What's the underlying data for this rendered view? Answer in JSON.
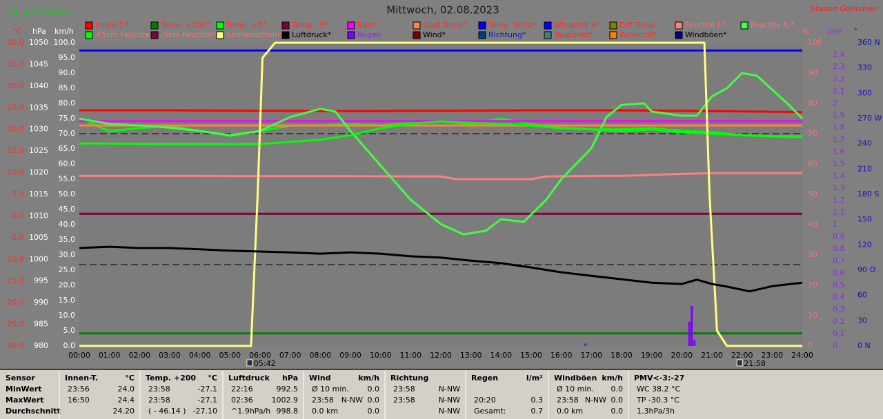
{
  "chart_data": {
    "type": "line",
    "title": "Mittwoch, 02.08.2023",
    "station": "Station Göritzhain",
    "month_average": "19.0 Monat-Ø",
    "xlim": [
      0,
      24
    ],
    "xticks": [
      {
        "value": 0,
        "label": "00:00"
      },
      {
        "value": 1,
        "label": "01:00"
      },
      {
        "value": 2,
        "label": "02:00"
      },
      {
        "value": 3,
        "label": "03:00"
      },
      {
        "value": 4,
        "label": "04:00"
      },
      {
        "value": 5,
        "label": "05:00"
      },
      {
        "value": 6,
        "label": "06:00"
      },
      {
        "value": 7,
        "label": "07:00"
      },
      {
        "value": 8,
        "label": "08:00"
      },
      {
        "value": 9,
        "label": "09:00"
      },
      {
        "value": 10,
        "label": "10:00"
      },
      {
        "value": 11,
        "label": "11:00"
      },
      {
        "value": 12,
        "label": "12:00"
      },
      {
        "value": 13,
        "label": "13:00"
      },
      {
        "value": 14,
        "label": "14:00"
      },
      {
        "value": 15,
        "label": "15:00"
      },
      {
        "value": 16,
        "label": "16:00"
      },
      {
        "value": 17,
        "label": "17:00"
      },
      {
        "value": 18,
        "label": "18:00"
      },
      {
        "value": 19,
        "label": "19:00"
      },
      {
        "value": 20,
        "label": "20:00"
      },
      {
        "value": 21,
        "label": "21:00"
      },
      {
        "value": 22,
        "label": "22:00"
      },
      {
        "value": 23,
        "label": "23:00"
      },
      {
        "value": 24,
        "label": "24:00"
      }
    ],
    "sun_events": [
      {
        "value": 5.7,
        "label": "05:42"
      },
      {
        "value": 21.9667,
        "label": "21:58"
      }
    ],
    "axes": [
      {
        "label": "°C",
        "color": "#ff2a2a",
        "lim": [
          -30,
          40
        ],
        "ticks": [
          {
            "value": -30,
            "label": "-30.0"
          },
          {
            "value": -25,
            "label": "-25.0"
          },
          {
            "value": -20,
            "label": "-20.0"
          },
          {
            "value": -15,
            "label": "-15.0"
          },
          {
            "value": -10,
            "label": "-10.0"
          },
          {
            "value": -5,
            "label": "-5.0"
          },
          {
            "value": 0,
            "label": "0.0"
          },
          {
            "value": 5,
            "label": "5.0"
          },
          {
            "value": 10,
            "label": "10.0"
          },
          {
            "value": 15,
            "label": "15.0"
          },
          {
            "value": 20,
            "label": "20.0"
          },
          {
            "value": 25,
            "label": "25.0"
          },
          {
            "value": 30,
            "label": "30.0"
          },
          {
            "value": 35,
            "label": "35.0"
          },
          {
            "value": 40,
            "label": "40.0"
          }
        ]
      },
      {
        "label": "hPa",
        "color": "#ffffff",
        "lim": [
          980,
          1050
        ],
        "ticks": [
          980,
          985,
          990,
          995,
          1000,
          1005,
          1010,
          1015,
          1020,
          1025,
          1030,
          1035,
          1040,
          1045,
          1050
        ]
      },
      {
        "label": "km/h",
        "color": "#ffffff",
        "lim": [
          0,
          100
        ],
        "ticks": [
          {
            "value": 0,
            "label": "0.0"
          },
          {
            "value": 5,
            "label": "5.0"
          },
          {
            "value": 10,
            "label": "10.0"
          },
          {
            "value": 15,
            "label": "15.0"
          },
          {
            "value": 20,
            "label": "20.0"
          },
          {
            "value": 25,
            "label": "25.0"
          },
          {
            "value": 30,
            "label": "30.0"
          },
          {
            "value": 35,
            "label": "35.0"
          },
          {
            "value": 40,
            "label": "40.0"
          },
          {
            "value": 45,
            "label": "45.0"
          },
          {
            "value": 50,
            "label": "50.0"
          },
          {
            "value": 55,
            "label": "55.0"
          },
          {
            "value": 60,
            "label": "60.0"
          },
          {
            "value": 65,
            "label": "65.0"
          },
          {
            "value": 70,
            "label": "70.0"
          },
          {
            "value": 75,
            "label": "75.0"
          },
          {
            "value": 80,
            "label": "80.0"
          },
          {
            "value": 85,
            "label": "85.0"
          },
          {
            "value": 90,
            "label": "90.0"
          },
          {
            "value": 95,
            "label": "95.0"
          },
          {
            "value": 100,
            "label": "100.0"
          }
        ]
      },
      {
        "label": "%",
        "color": "#ff7070",
        "lim": [
          0,
          100
        ],
        "ticks": [
          0,
          10,
          20,
          30,
          40,
          50,
          60,
          70,
          80,
          90,
          100
        ]
      },
      {
        "label": "l/m²",
        "color": "#8a2be2",
        "lim": [
          0,
          2.5
        ],
        "ticks": [
          0,
          0.1,
          0.2,
          0.3,
          0.4,
          0.5,
          0.6,
          0.7,
          0.8,
          0.9,
          1,
          1.1,
          1.2,
          1.3,
          1.4,
          1.5,
          1.6,
          1.7,
          1.8,
          1.9,
          2,
          2.1,
          2.2,
          2.3,
          2.4
        ]
      },
      {
        "label": "°",
        "color": "#1010c0",
        "lim": [
          0,
          360
        ],
        "ticks": [
          {
            "value": 0,
            "label": "0 N"
          },
          30,
          60,
          {
            "value": 90,
            "label": "90 O"
          },
          120,
          150,
          {
            "value": 180,
            "label": "180 S"
          },
          210,
          240,
          {
            "value": 270,
            "label": "270 W"
          },
          300,
          330,
          {
            "value": 360,
            "label": "360 N"
          }
        ]
      }
    ],
    "series": [
      {
        "name": "Innen-T.*",
        "color": "#ff0000",
        "axis": 0,
        "x": [
          0,
          3,
          6,
          9,
          12,
          15,
          18,
          21,
          24
        ],
        "values": [
          24.4,
          24.4,
          24.3,
          24.2,
          24.3,
          24.4,
          24.4,
          24.2,
          24.0
        ]
      },
      {
        "name": "Temp. +200*",
        "color": "#008000",
        "axis": 0,
        "x": [
          0,
          24
        ],
        "values": [
          -27.1,
          -27.1
        ]
      },
      {
        "name": "Temp. +5*",
        "color": "#00ff00",
        "axis": 0,
        "x": [
          0,
          1,
          2,
          3,
          4,
          5,
          6,
          7,
          8,
          9,
          10,
          11,
          12,
          13,
          14,
          15,
          16,
          17,
          18,
          19,
          20,
          21,
          22,
          23,
          24
        ],
        "values": [
          22.5,
          19.6,
          20.3,
          20.8,
          19.6,
          18.5,
          19.6,
          20.9,
          20.9,
          21.2,
          20.9,
          21.5,
          21.9,
          21.2,
          22.5,
          21.2,
          20.4,
          20.0,
          19.6,
          20.0,
          19.3,
          19.0,
          18.7,
          18.4,
          18.4
        ]
      },
      {
        "name": "Temp. -5*",
        "color": "#800040",
        "axis": 0,
        "x": [
          0,
          24
        ],
        "values": [
          0.5,
          0.5
        ]
      },
      {
        "name": "Bad*",
        "color": "#ff00ff",
        "axis": 0,
        "x": [
          0,
          24
        ],
        "values": [
          21.9,
          21.9
        ]
      },
      {
        "name": "Gast Temp*",
        "color": "#ff8040",
        "axis": 0,
        "x": [
          0,
          24
        ],
        "values": [
          20.9,
          20.9
        ]
      },
      {
        "name": "Temp. Wind*",
        "color": "#0000ff",
        "axis": 0
      },
      {
        "name": "Windchill X*",
        "color": "#0000ff",
        "axis": 0,
        "x": [
          0,
          24
        ],
        "values": [
          38.2,
          38.2
        ]
      },
      {
        "name": "Diff Temp.",
        "color": "#808000",
        "axis": 0
      },
      {
        "name": "Feuchte I.*",
        "color": "#ff8080",
        "axis": 3,
        "x": [
          0,
          12,
          12.5,
          15,
          15.5,
          18,
          19.5,
          21,
          24
        ],
        "values": [
          56.1,
          55.9,
          55,
          55,
          55.9,
          56.1,
          56.6,
          57,
          57
        ]
      },
      {
        "name": "Feuchte A.*",
        "color": "#40ff40",
        "axis": 3,
        "x": [
          0,
          1,
          2,
          3,
          4,
          5,
          6,
          7,
          8,
          8.5,
          9,
          10,
          11,
          12,
          12.75,
          13.5,
          14,
          14.75,
          15.5,
          16,
          17,
          17.5,
          18,
          18.75,
          19,
          20,
          20.5,
          21,
          21.5,
          22,
          22.5,
          23,
          23.5,
          24
        ],
        "values": [
          75,
          73.2,
          72.7,
          72,
          70.9,
          69.5,
          70.9,
          75.5,
          78.2,
          77.3,
          70.9,
          59.5,
          48.2,
          40.2,
          36.8,
          38,
          41.8,
          40.9,
          48.2,
          55,
          65.2,
          75.5,
          79.5,
          80,
          77.3,
          75.9,
          75.9,
          82.3,
          85,
          90,
          89.1,
          84.5,
          80,
          75
        ]
      },
      {
        "name": "+5cm Feuchte*",
        "color": "#00ff00",
        "axis": 3,
        "x": [
          0,
          3,
          6,
          7,
          8,
          9,
          10,
          11,
          12,
          13,
          14,
          15,
          16,
          17,
          18,
          19,
          20,
          21,
          22,
          23,
          24
        ],
        "values": [
          66.8,
          66.6,
          66.6,
          67.3,
          68,
          69.5,
          71.8,
          73.2,
          74.1,
          73.6,
          73.2,
          72.7,
          71.8,
          71.4,
          71.4,
          71.8,
          70.9,
          70.5,
          69.5,
          69.1,
          68.9
        ]
      },
      {
        "name": "-5cm Feuchte*",
        "color": "#800040",
        "axis": 3
      },
      {
        "name": "Sonnenschein*",
        "color": "#ffff80",
        "axis": 3,
        "x": [
          0,
          5.7,
          5.92,
          6.08,
          6.5,
          20.75,
          20.92,
          21.17,
          21.5,
          24
        ],
        "values": [
          0,
          0,
          50,
          95,
          100,
          100,
          50,
          5,
          0,
          0
        ]
      },
      {
        "name": "Luftdruck*",
        "color": "#000000",
        "axis": 1,
        "x": [
          0,
          1,
          2,
          3,
          4,
          5,
          6,
          7,
          8,
          9,
          10,
          11,
          12,
          13,
          14,
          15,
          16,
          17,
          18,
          19,
          20,
          20.5,
          21,
          21.5,
          22.25,
          23,
          24
        ],
        "values": [
          1002.6,
          1002.9,
          1002.6,
          1002.6,
          1002.3,
          1002.0,
          1001.8,
          1001.6,
          1001.3,
          1001.6,
          1001.3,
          1000.7,
          1000.4,
          999.7,
          999.1,
          998.1,
          997.0,
          996.2,
          995.4,
          994.6,
          994.3,
          995.3,
          994.3,
          993.7,
          992.6,
          993.8,
          994.6
        ]
      },
      {
        "name": "Regen",
        "color": "#8000ff",
        "axis": 4,
        "style": "bar",
        "x": [
          16.8,
          20.25,
          20.33,
          20.42
        ],
        "values": [
          0.02,
          0.2,
          0.33,
          0.05
        ]
      },
      {
        "name": "Wind*",
        "color": "#800000",
        "axis": 2
      },
      {
        "name": "Richtung*",
        "color": "#004080",
        "axis": 5
      },
      {
        "name": "Taupunkt*",
        "color": "#408080",
        "axis": 0
      },
      {
        "name": "Windchill*",
        "color": "#ff8000",
        "axis": 0
      },
      {
        "name": "Windböen*",
        "color": "#000080",
        "axis": 2
      }
    ]
  },
  "stats": {
    "row_labels": [
      "Sensor",
      "MinWert",
      "MaxWert",
      "Durchschnitt"
    ],
    "columns": [
      {
        "header": "Innen-T.",
        "unit": "°C",
        "rows": [
          {
            "left": "23:56",
            "right": "24.0"
          },
          {
            "left": "16:50",
            "right": "24.4"
          },
          {
            "right": "24.20"
          }
        ]
      },
      {
        "header": "Temp. +200",
        "unit": "°C",
        "rows": [
          {
            "left": "23:58",
            "right": "-27.1"
          },
          {
            "left": "23:58",
            "right": "-27.1"
          },
          {
            "left": "( - 46.14 )",
            "right": "-27.10"
          }
        ]
      },
      {
        "header": "Luftdruck",
        "unit": "hPa",
        "rows": [
          {
            "left": "22:16",
            "right": "992.5"
          },
          {
            "left": "02:36",
            "right": "1002.9"
          },
          {
            "left": "^1.9hPa/h",
            "right": "998.8"
          }
        ]
      },
      {
        "header": "Wind",
        "unit": "km/h",
        "rows": [
          {
            "left": "Ø 10 min.",
            "right": "0.0"
          },
          {
            "left": "23:58",
            "mid": "N-NW",
            "right": "0.0"
          },
          {
            "left": "0.0 km",
            "right": "0.0"
          }
        ]
      },
      {
        "header": "Richtung",
        "rows": [
          {
            "left": "23:58",
            "right": "N-NW"
          },
          {
            "left": "23:58",
            "right": "N-NW"
          },
          {
            "right": "N-NW"
          }
        ]
      },
      {
        "header": "Regen",
        "unit": "l/m²",
        "rows": [
          {},
          {
            "left": "20:20",
            "right": "0.3"
          },
          {
            "left": "Gesamt:",
            "right": "0.7"
          }
        ]
      },
      {
        "header": "Windböen",
        "unit": "km/h",
        "rows": [
          {
            "left": "Ø 10 min.",
            "right": "0.0"
          },
          {
            "left": "23:58",
            "mid": "N-NW",
            "right": "0.0"
          },
          {
            "left": "0.0 km",
            "right": "0.0"
          }
        ]
      },
      {
        "header": "PMV<-3:-27",
        "rows": [
          {
            "left": "WC 38.2 °C"
          },
          {
            "left": "TP -30.3 °C"
          },
          {
            "left": "1.3hPa/3h"
          }
        ]
      }
    ]
  }
}
